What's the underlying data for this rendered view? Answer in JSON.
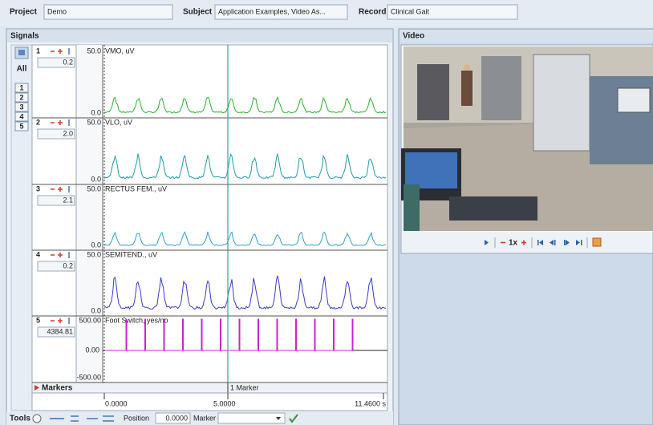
{
  "header": {
    "project": {
      "label": "Project",
      "value": "Demo"
    },
    "subject": {
      "label": "Subject",
      "value": "Application Examples, Video As..."
    },
    "record": {
      "label": "Record",
      "value": "Clinical Gait"
    }
  },
  "signals": {
    "title": "Signals",
    "all": "All",
    "channel_buttons": [
      "1",
      "2",
      "3",
      "4",
      "5"
    ],
    "channels": [
      {
        "number": "1",
        "value": "0.2",
        "max": "50.0",
        "min": "0.0",
        "name": "VMO, uV"
      },
      {
        "number": "2",
        "value": "2.0",
        "max": "50.0",
        "min": "0.0",
        "name": "VLO, uV"
      },
      {
        "number": "3",
        "value": "2.1",
        "max": "50.0",
        "min": "0.0",
        "name": "RECTUS FEM., uV"
      },
      {
        "number": "4",
        "value": "0.2",
        "max": "50.0",
        "min": "0.0",
        "name": "SEMITEND., uV"
      },
      {
        "number": "5",
        "value": "4384.81",
        "max": "500.00",
        "mid": "0.00",
        "min": "-500.00",
        "name": "Foot Switch, yes/no"
      }
    ],
    "markers": {
      "label": "Markers",
      "count": "1 Marker"
    },
    "time_axis": [
      "0.0000",
      "5.0000",
      "11.4600 s"
    ]
  },
  "toolbar": {
    "tools": "Tools",
    "position_label": "Position",
    "position_value": "0.0000",
    "marker_label": "Marker"
  },
  "video": {
    "title": "Video",
    "speed": "1x"
  }
}
